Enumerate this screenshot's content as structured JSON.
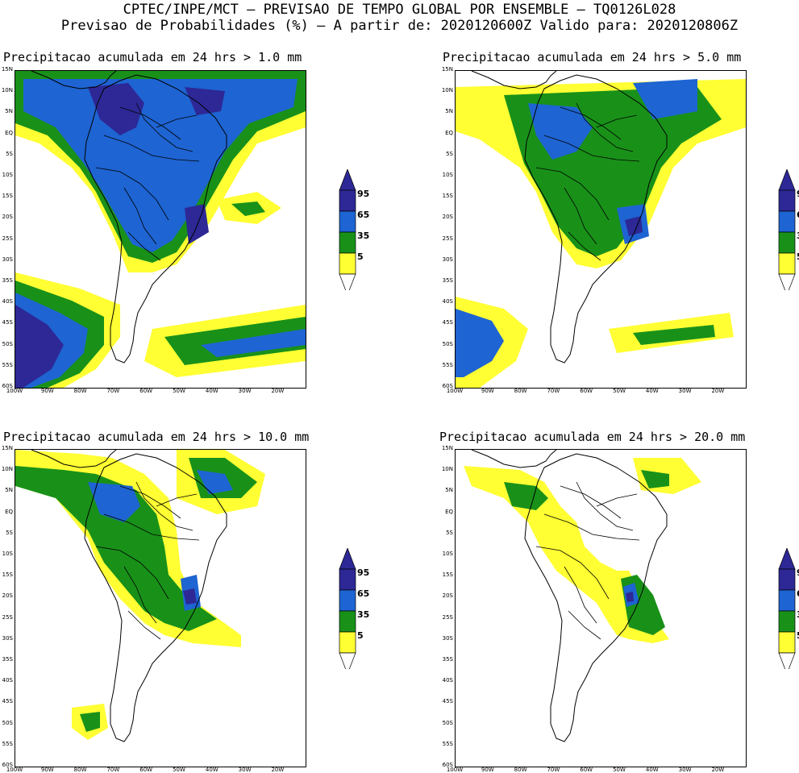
{
  "header": {
    "line1": "CPTEC/INPE/MCT – PREVISAO DE TEMPO GLOBAL POR ENSEMBLE – TQ0126L028",
    "line2": "Previsao de Probabilidades (%) –  A partir de: 2020120600Z  Valido para: 2020120806Z"
  },
  "colors": {
    "c5": "#ffff33",
    "c35": "#199119",
    "c65": "#1e64d2",
    "c95": "#2d2896",
    "coast": "#000000"
  },
  "legend": {
    "levels": [
      "95",
      "65",
      "35",
      "5"
    ]
  },
  "axes": {
    "lat_ticks": [
      "15N",
      "10N",
      "5N",
      "EQ",
      "5S",
      "10S",
      "15S",
      "20S",
      "25S",
      "30S",
      "35S",
      "40S",
      "45S",
      "50S",
      "55S",
      "60S"
    ],
    "lon_ticks": [
      "100W",
      "90W",
      "80W",
      "70W",
      "60W",
      "50W",
      "40W",
      "30W",
      "20W"
    ]
  },
  "panels": [
    {
      "id": "p1",
      "title": "Precipitacao acumulada em 24 hrs > 1.0 mm"
    },
    {
      "id": "p2",
      "title": "Precipitacao acumulada em 24 hrs > 5.0 mm"
    },
    {
      "id": "p3",
      "title": "Precipitacao acumulada em 24 hrs > 10.0 mm"
    },
    {
      "id": "p4",
      "title": "Precipitacao acumulada em 24 hrs > 20.0 mm"
    }
  ]
}
